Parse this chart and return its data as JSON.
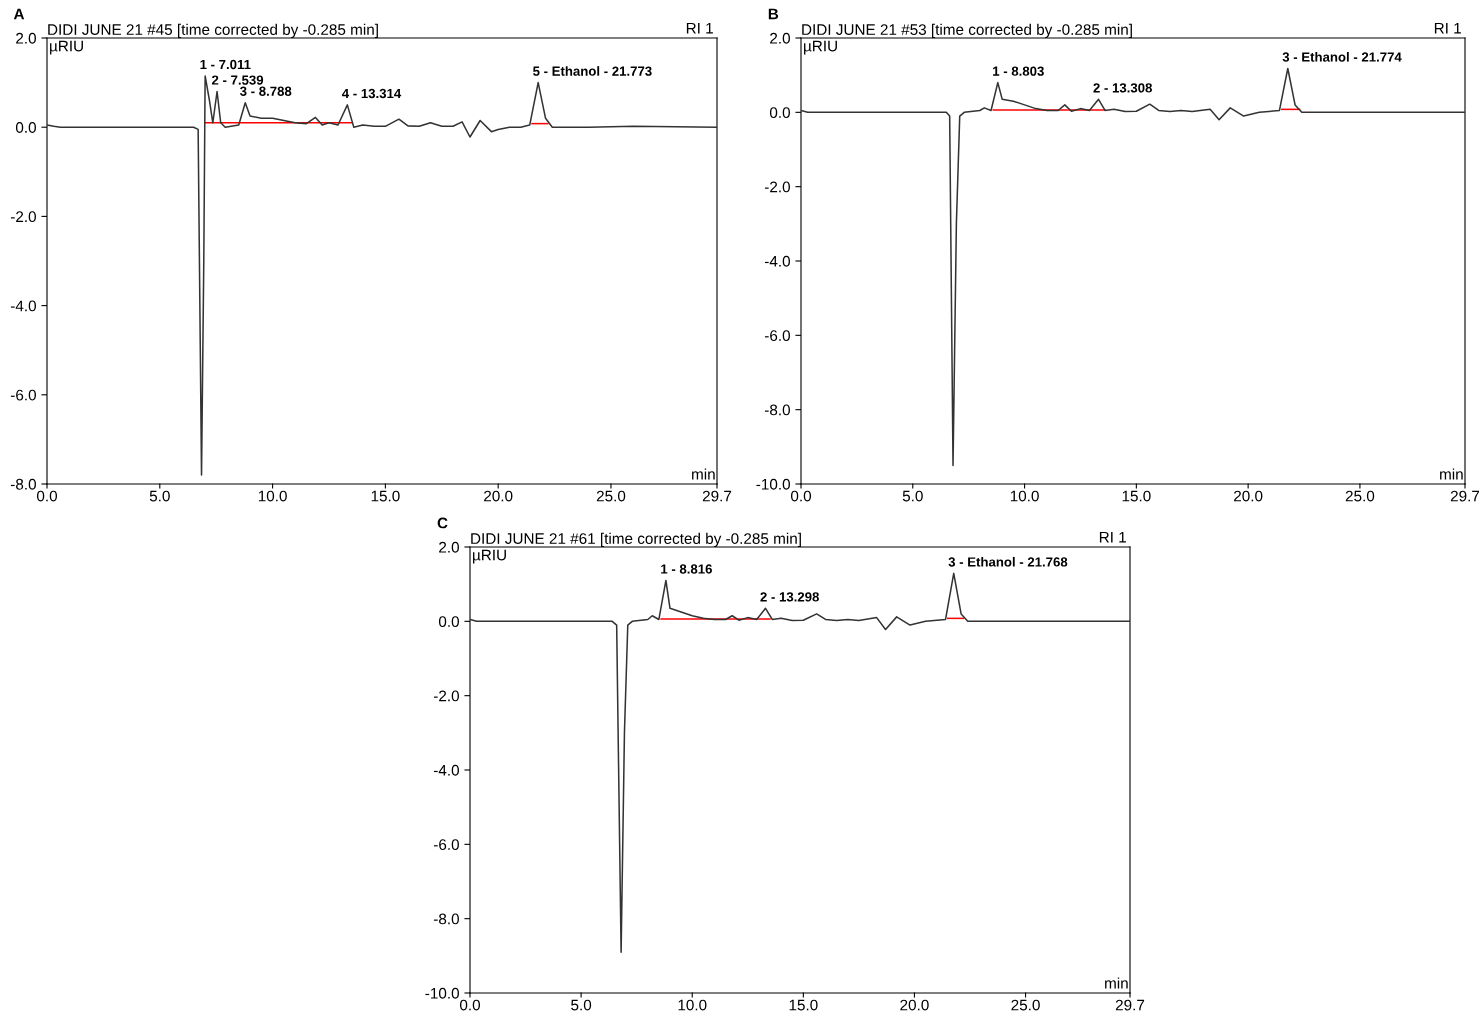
{
  "chart_data": [
    {
      "type": "line",
      "title": "DIDI JUNE 21 #45 [time corrected by -0.285 min]",
      "xlabel": "min",
      "ylabel": "µRIU",
      "annotations": [
        "A",
        "RI 1",
        {
          "text": "1 - 7.011",
          "x": 7.011,
          "y": 1.15
        },
        {
          "text": "2 - 7.539",
          "x": 7.539,
          "y": 0.8
        },
        {
          "text": "3 - 8.788",
          "x": 8.788,
          "y": 0.55
        },
        {
          "text": "4 - 13.314",
          "x": 13.314,
          "y": 0.5
        },
        {
          "text": "5 - Ethanol - 21.773",
          "x": 21.773,
          "y": 1.0
        }
      ],
      "series": [
        {
          "color": "#333333",
          "x": [
            0,
            0.3,
            0.6,
            6.5,
            6.7,
            6.85,
            6.95,
            7.0,
            7.011,
            7.2,
            7.35,
            7.539,
            7.7,
            7.9,
            8.5,
            8.788,
            9.0,
            9.5,
            10.0,
            10.5,
            11.0,
            11.5,
            11.9,
            12.2,
            12.5,
            12.9,
            13.314,
            13.6,
            14.0,
            14.5,
            15.0,
            15.6,
            16.0,
            16.5,
            17.0,
            17.5,
            18.0,
            18.4,
            18.75,
            19.2,
            19.7,
            20.0,
            20.5,
            21.0,
            21.4,
            21.773,
            22.1,
            22.4,
            24.0,
            26.0,
            29.7
          ],
          "values": [
            0.05,
            0.02,
            0,
            0,
            -0.05,
            -7.8,
            -3,
            0.5,
            1.15,
            0.6,
            0.1,
            0.8,
            0.1,
            0,
            0.05,
            0.55,
            0.25,
            0.2,
            0.2,
            0.15,
            0.1,
            0.08,
            0.22,
            0.05,
            0.1,
            0.05,
            0.5,
            0,
            0.05,
            0.02,
            0.02,
            0.18,
            0.03,
            0.02,
            0.1,
            0.02,
            0.02,
            0.12,
            -0.22,
            0.15,
            -0.1,
            -0.05,
            0,
            0,
            0.05,
            1.0,
            0.2,
            0,
            0,
            0.02,
            0
          ]
        },
        {
          "color": "#ff0000",
          "x": [
            7.0,
            13.5
          ],
          "values": [
            0.1,
            0.1
          ]
        },
        {
          "color": "#ff0000",
          "x": [
            21.5,
            22.2
          ],
          "values": [
            0.08,
            0.08
          ]
        }
      ],
      "xlim": [
        0,
        29.7
      ],
      "ylim": [
        -8,
        2
      ],
      "xticks": [
        {
          "value": 0,
          "label": "0.0"
        },
        {
          "value": 5,
          "label": "5.0"
        },
        {
          "value": 10,
          "label": "10.0"
        },
        {
          "value": 15,
          "label": "15.0"
        },
        {
          "value": 20,
          "label": "20.0"
        },
        {
          "value": 25,
          "label": "25.0"
        },
        {
          "value": 29.7,
          "label": "29.7"
        }
      ],
      "yticks": [
        {
          "value": 2,
          "label": "2.0"
        },
        {
          "value": 0,
          "label": "0.0"
        },
        {
          "value": -2,
          "label": "-2.0"
        },
        {
          "value": -4,
          "label": "-4.0"
        },
        {
          "value": -6,
          "label": "-6.0"
        },
        {
          "value": -8,
          "label": "-8.0"
        }
      ],
      "grid": false,
      "legend": false
    },
    {
      "type": "line",
      "title": "DIDI JUNE 21 #53 [time corrected by -0.285 min]",
      "xlabel": "min",
      "ylabel": "µRIU",
      "annotations": [
        "B",
        "RI 1",
        {
          "text": "1 - 8.803",
          "x": 8.803,
          "y": 0.8
        },
        {
          "text": "2 - 13.308",
          "x": 13.308,
          "y": 0.35
        },
        {
          "text": "3 - Ethanol - 21.774",
          "x": 21.774,
          "y": 1.18
        }
      ],
      "series": [
        {
          "color": "#333333",
          "x": [
            0,
            0.3,
            6.5,
            6.65,
            6.8,
            6.95,
            7.1,
            7.3,
            8.0,
            8.2,
            8.5,
            8.803,
            9.0,
            9.5,
            10.0,
            10.5,
            11.0,
            11.5,
            11.8,
            12.1,
            12.5,
            12.9,
            13.308,
            13.6,
            14.0,
            14.5,
            15.0,
            15.6,
            16.0,
            16.5,
            17.0,
            17.5,
            18.3,
            18.7,
            19.2,
            19.8,
            20.5,
            21.4,
            21.774,
            22.1,
            22.4,
            25.0,
            29.7
          ],
          "values": [
            0.05,
            0,
            0,
            -0.1,
            -9.5,
            -3,
            -0.1,
            0,
            0.05,
            0.12,
            0.05,
            0.8,
            0.35,
            0.3,
            0.2,
            0.1,
            0.05,
            0.05,
            0.2,
            0.03,
            0.1,
            0.05,
            0.35,
            0.05,
            0.08,
            0.02,
            0.03,
            0.22,
            0.05,
            0.02,
            0.05,
            0.02,
            0.08,
            -0.2,
            0.12,
            -0.1,
            0,
            0.05,
            1.18,
            0.2,
            0,
            0,
            0
          ]
        },
        {
          "color": "#ff0000",
          "x": [
            8.6,
            13.6
          ],
          "values": [
            0.06,
            0.06
          ]
        },
        {
          "color": "#ff0000",
          "x": [
            21.5,
            22.3
          ],
          "values": [
            0.08,
            0.08
          ]
        }
      ],
      "xlim": [
        0,
        29.7
      ],
      "ylim": [
        -10,
        2
      ],
      "xticks": [
        {
          "value": 0,
          "label": "0.0"
        },
        {
          "value": 5,
          "label": "5.0"
        },
        {
          "value": 10,
          "label": "10.0"
        },
        {
          "value": 15,
          "label": "15.0"
        },
        {
          "value": 20,
          "label": "20.0"
        },
        {
          "value": 25,
          "label": "25.0"
        },
        29.7
      ],
      "yticks": [
        {
          "value": 2,
          "label": "2.0"
        },
        {
          "value": 0,
          "label": "0.0"
        },
        {
          "value": -2,
          "label": "-2.0"
        },
        {
          "value": -4,
          "label": "-4.0"
        },
        {
          "value": -6,
          "label": "-6.0"
        },
        {
          "value": -8,
          "label": "-8.0"
        },
        {
          "value": -10,
          "label": "-10.0"
        }
      ],
      "grid": false,
      "legend": false
    },
    {
      "type": "line",
      "title": "DIDI JUNE 21 #61 [time corrected by -0.285 min]",
      "xlabel": "min",
      "ylabel": "µRIU",
      "annotations": [
        "C",
        "RI 1",
        {
          "text": "1 - 8.816",
          "x": 8.816,
          "y": 1.1
        },
        {
          "text": "2 - 13.298",
          "x": 13.298,
          "y": 0.35
        },
        {
          "text": "3 - Ethanol - 21.768",
          "x": 21.768,
          "y": 1.29
        }
      ],
      "series": [
        {
          "color": "#333333",
          "x": [
            0,
            0.3,
            6.4,
            6.6,
            6.8,
            6.95,
            7.1,
            7.3,
            8.0,
            8.2,
            8.5,
            8.816,
            9.0,
            9.5,
            10.0,
            10.5,
            11.0,
            11.5,
            11.8,
            12.1,
            12.5,
            12.9,
            13.298,
            13.6,
            14.0,
            14.5,
            15.0,
            15.6,
            16.0,
            16.5,
            17.0,
            17.5,
            18.3,
            18.7,
            19.2,
            19.8,
            20.5,
            21.4,
            21.768,
            22.1,
            22.4,
            25.0,
            29.7
          ],
          "values": [
            0.05,
            0,
            0,
            -0.1,
            -8.9,
            -3,
            -0.1,
            0,
            0.05,
            0.15,
            0.05,
            1.1,
            0.35,
            0.25,
            0.15,
            0.08,
            0.05,
            0.05,
            0.15,
            0.03,
            0.1,
            0.05,
            0.35,
            0.05,
            0.08,
            0.02,
            0.03,
            0.2,
            0.05,
            0.02,
            0.05,
            0.02,
            0.1,
            -0.22,
            0.12,
            -0.1,
            0,
            0.05,
            1.29,
            0.2,
            0,
            0,
            0
          ]
        },
        {
          "color": "#ff0000",
          "x": [
            8.6,
            13.5
          ],
          "values": [
            0.06,
            0.06
          ]
        },
        {
          "color": "#ff0000",
          "x": [
            21.5,
            22.2
          ],
          "values": [
            0.08,
            0.08
          ]
        }
      ],
      "xlim": [
        0,
        29.7
      ],
      "ylim": [
        -10,
        2
      ],
      "xticks": [
        {
          "value": 0,
          "label": "0.0"
        },
        {
          "value": 5,
          "label": "5.0"
        },
        {
          "value": 10,
          "label": "10.0"
        },
        {
          "value": 15,
          "label": "15.0"
        },
        {
          "value": 20,
          "label": "20.0"
        },
        {
          "value": 25,
          "label": "25.0"
        },
        29.7
      ],
      "yticks": [
        {
          "value": 2,
          "label": "2.0"
        },
        {
          "value": 0,
          "label": "0.0"
        },
        {
          "value": -2,
          "label": "-2.0"
        },
        {
          "value": -4,
          "label": "-4.0"
        },
        {
          "value": -6,
          "label": "-6.0"
        },
        {
          "value": -8,
          "label": "-8.0"
        },
        {
          "value": -10,
          "label": "-10.0"
        }
      ],
      "grid": false,
      "legend": false
    }
  ]
}
